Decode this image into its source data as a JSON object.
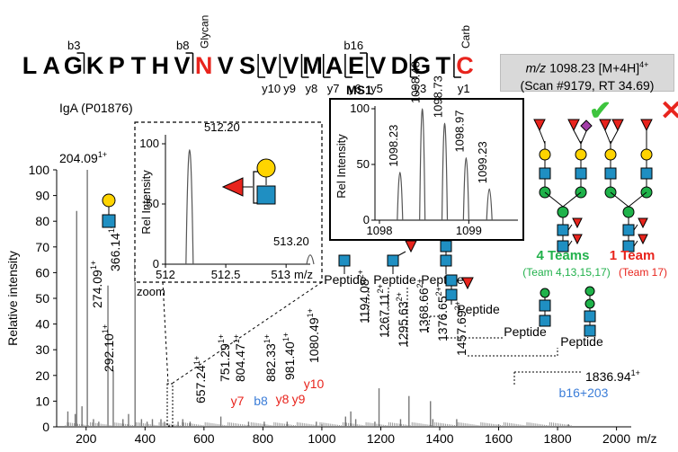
{
  "sequence": {
    "residues": [
      "L",
      "A",
      "G",
      "K",
      "P",
      "T",
      "H",
      "V",
      "N",
      "V",
      "S",
      "V",
      "V",
      "M",
      "A",
      "E",
      "V",
      "D",
      "G",
      "T",
      "C"
    ],
    "highlight_color": "#e8241d",
    "highlight_indices": [
      8,
      20
    ],
    "b_ions": [
      {
        "label": "b3",
        "after": 2
      },
      {
        "label": "b8",
        "after": 7
      },
      {
        "label": "b16",
        "after": 15
      }
    ],
    "y_ions": [
      {
        "label": "y10",
        "after": 10
      },
      {
        "label": "y9",
        "after": 11
      },
      {
        "label": "y8",
        "after": 12
      },
      {
        "label": "y7",
        "after": 13
      },
      {
        "label": "y6",
        "after": 14
      },
      {
        "label": "y5",
        "after": 15
      },
      {
        "label": "y3",
        "after": 17
      },
      {
        "label": "y1",
        "after": 19
      }
    ],
    "mods": [
      {
        "label": "Glycan",
        "at": 8
      },
      {
        "label": "Carb",
        "at": 20
      }
    ]
  },
  "precursor": {
    "mz_label": "m/z",
    "mz_value": "1098.23 [M+4H]",
    "charge_sup": "4+",
    "scan": "(Scan #9179, RT 34.69)"
  },
  "protein_label": "IgA (P01876)",
  "chart_data": {
    "type": "bar",
    "xlabel": "m/z",
    "ylabel": "Relative intensity",
    "xlim": [
      100,
      2050
    ],
    "ylim": [
      0,
      100
    ],
    "xticks": [
      200,
      400,
      600,
      800,
      1000,
      1200,
      1400,
      1600,
      1800,
      2000
    ],
    "yticks": [
      0,
      10,
      20,
      30,
      40,
      50,
      60,
      70,
      80,
      90,
      100
    ],
    "peaks": [
      {
        "x": 138,
        "y": 6
      },
      {
        "x": 163,
        "y": 5
      },
      {
        "x": 168,
        "y": 84
      },
      {
        "x": 186,
        "y": 8
      },
      {
        "x": 204.09,
        "y": 100
      },
      {
        "x": 225,
        "y": 3
      },
      {
        "x": 243,
        "y": 2
      },
      {
        "x": 274.09,
        "y": 55
      },
      {
        "x": 292.1,
        "y": 22
      },
      {
        "x": 325,
        "y": 3
      },
      {
        "x": 344,
        "y": 5
      },
      {
        "x": 366.14,
        "y": 64
      },
      {
        "x": 388,
        "y": 3
      },
      {
        "x": 407,
        "y": 2
      },
      {
        "x": 425,
        "y": 3
      },
      {
        "x": 454,
        "y": 3
      },
      {
        "x": 466,
        "y": 2
      },
      {
        "x": 512.2,
        "y": 2
      },
      {
        "x": 528,
        "y": 3
      },
      {
        "x": 553,
        "y": 2
      },
      {
        "x": 657.24,
        "y": 4
      },
      {
        "x": 751.29,
        "y": 2
      },
      {
        "x": 804.47,
        "y": 2
      },
      {
        "x": 882.33,
        "y": 2
      },
      {
        "x": 981.4,
        "y": 2
      },
      {
        "x": 1000,
        "y": 1
      },
      {
        "x": 1080.49,
        "y": 4
      },
      {
        "x": 1098.2,
        "y": 6
      },
      {
        "x": 1115,
        "y": 3
      },
      {
        "x": 1180,
        "y": 2
      },
      {
        "x": 1194.08,
        "y": 15
      },
      {
        "x": 1267.11,
        "y": 3
      },
      {
        "x": 1295.63,
        "y": 12
      },
      {
        "x": 1368.66,
        "y": 10
      },
      {
        "x": 1376.65,
        "y": 3
      },
      {
        "x": 1457.69,
        "y": 3
      },
      {
        "x": 1600,
        "y": 1
      },
      {
        "x": 1836.94,
        "y": 1
      }
    ],
    "peak_labels": [
      {
        "mz": "204.09",
        "charge": "1+",
        "orient": "h"
      },
      {
        "mz": "366.14",
        "charge": "1+",
        "orient": "v"
      },
      {
        "mz": "274.09",
        "charge": "1+",
        "orient": "v"
      },
      {
        "mz": "292.10",
        "charge": "1+",
        "orient": "v"
      },
      {
        "mz": "657.24",
        "charge": "1+",
        "orient": "v"
      },
      {
        "mz": "751.29",
        "charge": "1+",
        "orient": "v"
      },
      {
        "mz": "804.47",
        "charge": "1+",
        "orient": "v"
      },
      {
        "mz": "882.33",
        "charge": "1+",
        "orient": "v"
      },
      {
        "mz": "981.40",
        "charge": "1+",
        "orient": "v"
      },
      {
        "mz": "1080.49",
        "charge": "1+",
        "orient": "v"
      },
      {
        "mz": "1194.08",
        "charge": "2+",
        "orient": "v"
      },
      {
        "mz": "1267.11",
        "charge": "2+",
        "orient": "v"
      },
      {
        "mz": "1295.63",
        "charge": "2+",
        "orient": "v"
      },
      {
        "mz": "1368.66",
        "charge": "2+",
        "orient": "v"
      },
      {
        "mz": "1376.65",
        "charge": "2+",
        "orient": "v"
      },
      {
        "mz": "1457.69",
        "charge": "2+",
        "orient": "v"
      },
      {
        "mz": "1836.94",
        "charge": "1+",
        "orient": "h"
      }
    ],
    "ion_labels": [
      {
        "text": "y7",
        "color": "#e8241d"
      },
      {
        "text": "b8",
        "color": "#3b7dd8"
      },
      {
        "text": "y8",
        "color": "#e8241d"
      },
      {
        "text": "y9",
        "color": "#e8241d"
      },
      {
        "text": "y10",
        "color": "#e8241d"
      },
      {
        "text": "b16+203",
        "color": "#3b7dd8"
      }
    ],
    "peptide_label": "Peptide",
    "zoom_inset": {
      "xlabel": "m/z",
      "ylabel": "Rel Intensity",
      "xlim": [
        512,
        513.2
      ],
      "ylim": [
        0,
        100
      ],
      "xticks": [
        "512",
        "512.5",
        "513"
      ],
      "yticks": [
        "0",
        "50",
        "100"
      ],
      "peaks": [
        {
          "x": 512.2,
          "y": 100
        },
        {
          "x": 513.2,
          "y": 8
        }
      ],
      "peak_labels": [
        "512.20",
        "513.20"
      ],
      "caption": "zoom"
    },
    "ms1_inset": {
      "title": "MS1",
      "ylabel": "Rel Intensity",
      "xlim": [
        1097.95,
        1099.55
      ],
      "ylim": [
        0,
        100
      ],
      "xticks": [
        "1098",
        "1099"
      ],
      "yticks": [
        "0",
        "50",
        "100"
      ],
      "peaks": [
        {
          "x": 1098.23,
          "y": 43
        },
        {
          "x": 1098.48,
          "y": 100
        },
        {
          "x": 1098.73,
          "y": 87
        },
        {
          "x": 1098.97,
          "y": 56
        },
        {
          "x": 1099.23,
          "y": 28
        }
      ],
      "peak_labels": [
        "1098.23",
        "1098.48",
        "1098.73",
        "1098.97",
        "1099.23"
      ]
    }
  },
  "glycan_panel": {
    "check_symbol": "✔",
    "cross_symbol": "✕",
    "check_color": "#3ec43e",
    "cross_color": "#e8241d",
    "left_title": "4 Teams",
    "left_sub": "(Team 4,13,15,17)",
    "right_title": "1 Team",
    "right_sub": "(Team 17)",
    "left_color": "#22b14c",
    "right_color": "#e8241d"
  },
  "colors": {
    "glcnac": "#1f8fc2",
    "galactose": "#ffd400",
    "mannose": "#1fb24a",
    "fucose": "#e8241d",
    "sialic": "#a23ea7",
    "blue_ion": "#3b7dd8",
    "red_ion": "#e8241d"
  }
}
